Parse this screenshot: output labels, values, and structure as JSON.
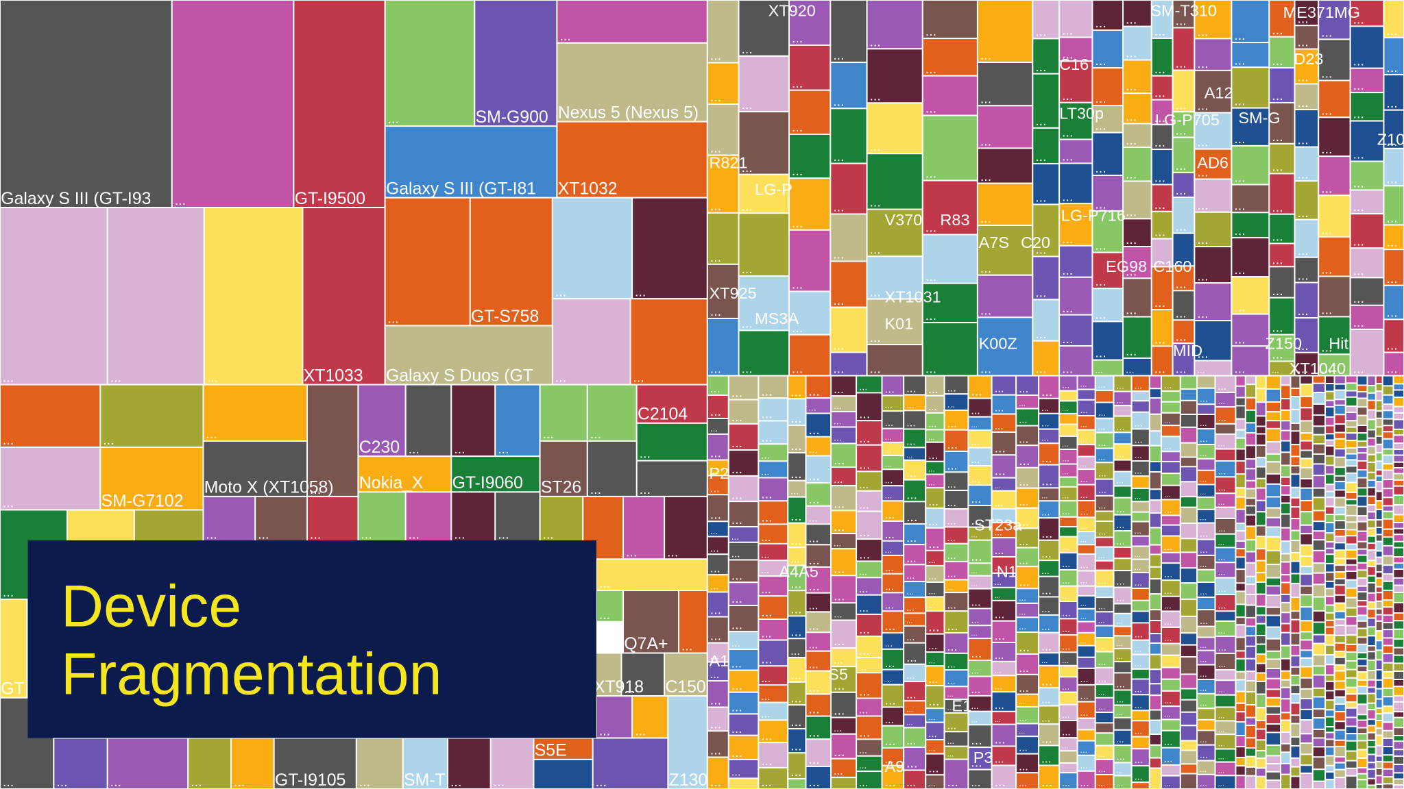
{
  "title_lines": [
    "Device",
    "Fragmentation"
  ],
  "ellipsis": "...",
  "labels": [
    "Galaxy S III (GT-I93",
    "GT-I9500",
    "SM-G900",
    "Nexus 5 (Nexus 5)",
    "Galaxy S III (GT-I81",
    "XT1032",
    "GT-S758",
    "XT1033",
    "Galaxy S Duos (GT",
    "C2104",
    "C230",
    "Nokia_X",
    "GT-I9060",
    "ST26",
    "SM-G7102",
    "Moto X (XT1058)",
    "Q7A+",
    "XT918",
    "C150",
    "Z130",
    "S5E",
    "GT-I9105",
    "SM-T",
    "GT",
    "XT920",
    "SM-T310",
    "ME371MG",
    "C16",
    "D23",
    "A12",
    "LT30p",
    "LG-P705",
    "SM-G",
    "R821",
    "AD6",
    "Z10",
    "LG-P",
    "V370",
    "R83",
    "LG-P716",
    "A7S",
    "C20",
    "EG98",
    "C160",
    "XT925",
    "XT1031",
    "MS3A",
    "K01",
    "K00Z",
    "MID",
    "Z150",
    "Hit",
    "XT1040",
    "P2",
    "ST23a",
    "N1",
    "A4A5",
    "A1",
    "S5",
    "E1",
    "P3",
    "A9"
  ]
}
